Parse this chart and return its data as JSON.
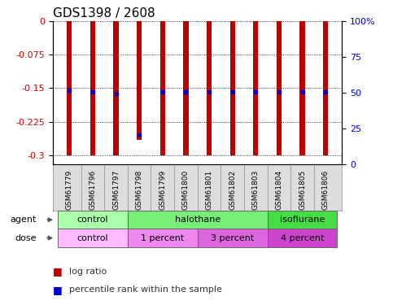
{
  "title": "GDS1398 / 2608",
  "samples": [
    "GSM61779",
    "GSM61796",
    "GSM61797",
    "GSM61798",
    "GSM61799",
    "GSM61800",
    "GSM61801",
    "GSM61802",
    "GSM61803",
    "GSM61804",
    "GSM61805",
    "GSM61806"
  ],
  "log_ratio": [
    -0.3,
    -0.3,
    -0.3,
    -0.265,
    -0.3,
    -0.3,
    -0.3,
    -0.3,
    -0.3,
    -0.3,
    -0.3,
    -0.3
  ],
  "pct_rank_val": [
    -0.155,
    -0.158,
    -0.161,
    -0.255,
    -0.158,
    -0.158,
    -0.158,
    -0.158,
    -0.158,
    -0.158,
    -0.158,
    -0.158
  ],
  "ylim_left": [
    0,
    -0.32
  ],
  "yticks_left": [
    0,
    -0.075,
    -0.15,
    -0.225,
    -0.3
  ],
  "ytick_labels_left": [
    "0",
    "-0.075",
    "-0.15",
    "-0.225",
    "-0.3"
  ],
  "yticks_right": [
    0,
    25,
    50,
    75,
    100
  ],
  "ytick_labels_right": [
    "0",
    "25",
    "50",
    "75",
    "100%"
  ],
  "bar_color": "#bb0000",
  "dot_color": "#0000cc",
  "left_axis_color": "#cc0000",
  "right_axis_color": "#0000cc",
  "agent_groups": [
    {
      "label": "control",
      "start": 0,
      "end": 3,
      "color": "#aaffaa"
    },
    {
      "label": "halothane",
      "start": 3,
      "end": 9,
      "color": "#77ee77"
    },
    {
      "label": "isoflurane",
      "start": 9,
      "end": 12,
      "color": "#44dd44"
    }
  ],
  "dose_groups": [
    {
      "label": "control",
      "start": 0,
      "end": 3,
      "color": "#ffbbff"
    },
    {
      "label": "1 percent",
      "start": 3,
      "end": 6,
      "color": "#ee88ee"
    },
    {
      "label": "3 percent",
      "start": 6,
      "end": 9,
      "color": "#dd66dd"
    },
    {
      "label": "4 percent",
      "start": 9,
      "end": 12,
      "color": "#cc44cc"
    }
  ],
  "sample_bg_color": "#dddddd",
  "grid_color": "#000000",
  "bg_color": "#ffffff"
}
